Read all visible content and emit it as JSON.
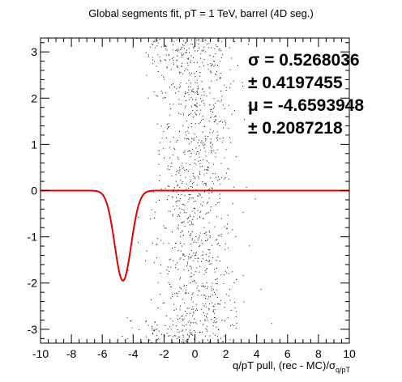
{
  "chart_data": {
    "type": "scatter",
    "title": "Global segments fit, pT = 1 TeV, barrel (4D seg.)",
    "xlabel_main": "q/pT pull, (rec - MC)/σ",
    "xlabel_sub": "q/pT",
    "ylabel": "",
    "xlim": [
      -10,
      10
    ],
    "ylim": [
      -3.3,
      3.3
    ],
    "x_ticks": [
      -10,
      -8,
      -6,
      -4,
      -2,
      0,
      2,
      4,
      6,
      8,
      10
    ],
    "y_ticks": [
      -3,
      -2,
      -1,
      0,
      1,
      2,
      3
    ],
    "grid": false,
    "stats": {
      "sigma_label": "σ = 0.5268036",
      "sigma_err": "± 0.4197455",
      "mu_label": "μ = -4.6593948",
      "mu_err": "± 0.2087218"
    },
    "fit_curve": {
      "function": "gaussian",
      "color": "#e00000",
      "baseline": 0,
      "amplitude": -1.95,
      "mean": -4.66,
      "sigma": 0.53,
      "x_range": [
        -10,
        10
      ]
    },
    "scatter_series": {
      "color": "#000000",
      "description_points": [
        {
          "x_center": 0.0,
          "x_spread": 1.3,
          "count": 1100
        },
        {
          "x_center": -2.5,
          "x_spread": 1.0,
          "count": 40,
          "y_band": [
            -3.3,
            -2.8
          ]
        },
        {
          "x_center": -2.5,
          "x_spread": 1.0,
          "count": 30,
          "y_band": [
            2.8,
            3.3
          ]
        }
      ]
    }
  }
}
